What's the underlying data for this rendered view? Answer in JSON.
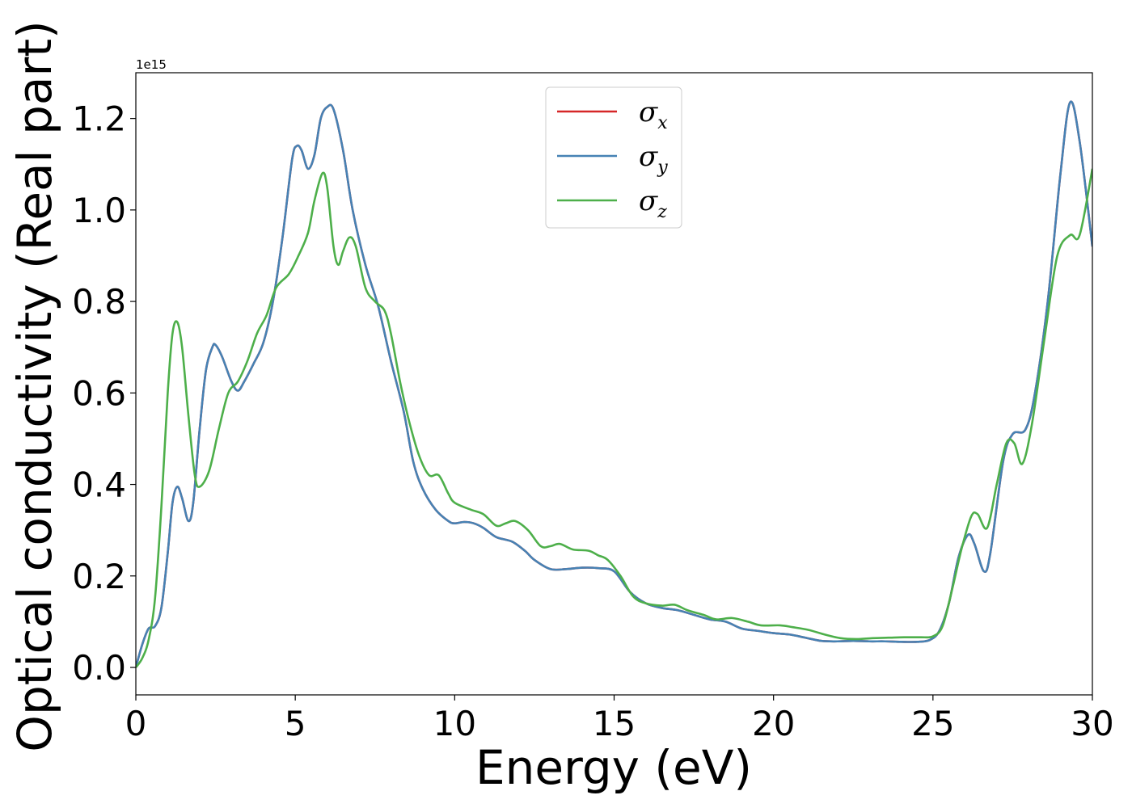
{
  "chart_data": {
    "type": "line",
    "xlabel": "Energy (eV)",
    "ylabel": "Optical conductivity (Real part)",
    "offset_text": "1e15",
    "xlim": [
      0,
      30
    ],
    "ylim": [
      -0.06,
      1.3
    ],
    "x_ticks": [
      0,
      5,
      10,
      15,
      20,
      25,
      30
    ],
    "x_tick_labels": [
      "0",
      "5",
      "10",
      "15",
      "20",
      "25",
      "30"
    ],
    "y_ticks": [
      0.0,
      0.2,
      0.4,
      0.6,
      0.8,
      1.0,
      1.2
    ],
    "y_tick_labels": [
      "0.0",
      "0.2",
      "0.4",
      "0.6",
      "0.8",
      "1.0",
      "1.2"
    ],
    "grid": false,
    "legend_position": "top-center",
    "series": [
      {
        "name": "σ",
        "subscript": "x",
        "color": "#d62728",
        "points": [
          [
            0,
            0
          ],
          [
            0.2,
            0.05
          ],
          [
            0.4,
            0.085
          ],
          [
            0.6,
            0.09
          ],
          [
            0.8,
            0.13
          ],
          [
            1.0,
            0.25
          ],
          [
            1.15,
            0.36
          ],
          [
            1.3,
            0.395
          ],
          [
            1.45,
            0.37
          ],
          [
            1.65,
            0.32
          ],
          [
            1.8,
            0.36
          ],
          [
            2.0,
            0.52
          ],
          [
            2.2,
            0.65
          ],
          [
            2.4,
            0.7
          ],
          [
            2.5,
            0.705
          ],
          [
            2.7,
            0.68
          ],
          [
            3.0,
            0.625
          ],
          [
            3.2,
            0.605
          ],
          [
            3.4,
            0.625
          ],
          [
            3.7,
            0.665
          ],
          [
            4.0,
            0.71
          ],
          [
            4.3,
            0.8
          ],
          [
            4.6,
            0.94
          ],
          [
            4.9,
            1.11
          ],
          [
            5.05,
            1.14
          ],
          [
            5.2,
            1.13
          ],
          [
            5.4,
            1.09
          ],
          [
            5.6,
            1.12
          ],
          [
            5.8,
            1.2
          ],
          [
            6.0,
            1.225
          ],
          [
            6.2,
            1.22
          ],
          [
            6.5,
            1.13
          ],
          [
            6.8,
            1.0
          ],
          [
            7.2,
            0.88
          ],
          [
            7.6,
            0.79
          ],
          [
            8.0,
            0.67
          ],
          [
            8.4,
            0.56
          ],
          [
            8.7,
            0.45
          ],
          [
            9.0,
            0.39
          ],
          [
            9.4,
            0.345
          ],
          [
            9.8,
            0.32
          ],
          [
            10.0,
            0.315
          ],
          [
            10.3,
            0.318
          ],
          [
            10.6,
            0.315
          ],
          [
            10.9,
            0.305
          ],
          [
            11.3,
            0.285
          ],
          [
            11.8,
            0.275
          ],
          [
            12.2,
            0.255
          ],
          [
            12.5,
            0.235
          ],
          [
            13.0,
            0.215
          ],
          [
            13.5,
            0.215
          ],
          [
            14.0,
            0.218
          ],
          [
            14.5,
            0.217
          ],
          [
            15.0,
            0.21
          ],
          [
            15.5,
            0.165
          ],
          [
            16.0,
            0.14
          ],
          [
            16.5,
            0.13
          ],
          [
            17.0,
            0.125
          ],
          [
            17.5,
            0.115
          ],
          [
            18.0,
            0.105
          ],
          [
            18.5,
            0.1
          ],
          [
            19.0,
            0.085
          ],
          [
            19.5,
            0.08
          ],
          [
            20.0,
            0.075
          ],
          [
            20.5,
            0.072
          ],
          [
            21.0,
            0.065
          ],
          [
            21.5,
            0.058
          ],
          [
            22.0,
            0.057
          ],
          [
            22.5,
            0.058
          ],
          [
            23.0,
            0.057
          ],
          [
            23.5,
            0.057
          ],
          [
            24.0,
            0.056
          ],
          [
            24.5,
            0.056
          ],
          [
            24.9,
            0.06
          ],
          [
            25.2,
            0.08
          ],
          [
            25.5,
            0.14
          ],
          [
            25.8,
            0.24
          ],
          [
            26.1,
            0.29
          ],
          [
            26.3,
            0.27
          ],
          [
            26.6,
            0.21
          ],
          [
            26.8,
            0.25
          ],
          [
            27.2,
            0.45
          ],
          [
            27.5,
            0.51
          ],
          [
            27.9,
            0.52
          ],
          [
            28.2,
            0.6
          ],
          [
            28.6,
            0.8
          ],
          [
            29.0,
            1.08
          ],
          [
            29.3,
            1.235
          ],
          [
            29.6,
            1.15
          ],
          [
            30.0,
            0.92
          ]
        ]
      },
      {
        "name": "σ",
        "subscript": "y",
        "color": "#4682b4",
        "points": [
          [
            0,
            0
          ],
          [
            0.2,
            0.05
          ],
          [
            0.4,
            0.085
          ],
          [
            0.6,
            0.09
          ],
          [
            0.8,
            0.13
          ],
          [
            1.0,
            0.25
          ],
          [
            1.15,
            0.36
          ],
          [
            1.3,
            0.395
          ],
          [
            1.45,
            0.37
          ],
          [
            1.65,
            0.32
          ],
          [
            1.8,
            0.36
          ],
          [
            2.0,
            0.52
          ],
          [
            2.2,
            0.65
          ],
          [
            2.4,
            0.7
          ],
          [
            2.5,
            0.705
          ],
          [
            2.7,
            0.68
          ],
          [
            3.0,
            0.625
          ],
          [
            3.2,
            0.605
          ],
          [
            3.4,
            0.625
          ],
          [
            3.7,
            0.665
          ],
          [
            4.0,
            0.71
          ],
          [
            4.3,
            0.8
          ],
          [
            4.6,
            0.94
          ],
          [
            4.9,
            1.11
          ],
          [
            5.05,
            1.14
          ],
          [
            5.2,
            1.13
          ],
          [
            5.4,
            1.09
          ],
          [
            5.6,
            1.12
          ],
          [
            5.8,
            1.2
          ],
          [
            6.0,
            1.225
          ],
          [
            6.2,
            1.22
          ],
          [
            6.5,
            1.13
          ],
          [
            6.8,
            1.0
          ],
          [
            7.2,
            0.88
          ],
          [
            7.6,
            0.79
          ],
          [
            8.0,
            0.67
          ],
          [
            8.4,
            0.56
          ],
          [
            8.7,
            0.45
          ],
          [
            9.0,
            0.39
          ],
          [
            9.4,
            0.345
          ],
          [
            9.8,
            0.32
          ],
          [
            10.0,
            0.315
          ],
          [
            10.3,
            0.318
          ],
          [
            10.6,
            0.315
          ],
          [
            10.9,
            0.305
          ],
          [
            11.3,
            0.285
          ],
          [
            11.8,
            0.275
          ],
          [
            12.2,
            0.255
          ],
          [
            12.5,
            0.235
          ],
          [
            13.0,
            0.215
          ],
          [
            13.5,
            0.215
          ],
          [
            14.0,
            0.218
          ],
          [
            14.5,
            0.217
          ],
          [
            15.0,
            0.21
          ],
          [
            15.5,
            0.165
          ],
          [
            16.0,
            0.14
          ],
          [
            16.5,
            0.13
          ],
          [
            17.0,
            0.125
          ],
          [
            17.5,
            0.115
          ],
          [
            18.0,
            0.105
          ],
          [
            18.5,
            0.1
          ],
          [
            19.0,
            0.085
          ],
          [
            19.5,
            0.08
          ],
          [
            20.0,
            0.075
          ],
          [
            20.5,
            0.072
          ],
          [
            21.0,
            0.065
          ],
          [
            21.5,
            0.058
          ],
          [
            22.0,
            0.057
          ],
          [
            22.5,
            0.058
          ],
          [
            23.0,
            0.057
          ],
          [
            23.5,
            0.057
          ],
          [
            24.0,
            0.056
          ],
          [
            24.5,
            0.056
          ],
          [
            24.9,
            0.06
          ],
          [
            25.2,
            0.08
          ],
          [
            25.5,
            0.14
          ],
          [
            25.8,
            0.24
          ],
          [
            26.1,
            0.29
          ],
          [
            26.3,
            0.27
          ],
          [
            26.6,
            0.21
          ],
          [
            26.8,
            0.25
          ],
          [
            27.2,
            0.45
          ],
          [
            27.5,
            0.51
          ],
          [
            27.9,
            0.52
          ],
          [
            28.2,
            0.6
          ],
          [
            28.6,
            0.8
          ],
          [
            29.0,
            1.08
          ],
          [
            29.3,
            1.235
          ],
          [
            29.6,
            1.15
          ],
          [
            30.0,
            0.92
          ]
        ]
      },
      {
        "name": "σ",
        "subscript": "z",
        "color": "#4daf4a",
        "points": [
          [
            0,
            0
          ],
          [
            0.2,
            0.02
          ],
          [
            0.4,
            0.06
          ],
          [
            0.6,
            0.15
          ],
          [
            0.8,
            0.35
          ],
          [
            1.0,
            0.6
          ],
          [
            1.15,
            0.73
          ],
          [
            1.3,
            0.755
          ],
          [
            1.45,
            0.7
          ],
          [
            1.65,
            0.55
          ],
          [
            1.85,
            0.42
          ],
          [
            2.0,
            0.395
          ],
          [
            2.3,
            0.43
          ],
          [
            2.6,
            0.52
          ],
          [
            2.9,
            0.6
          ],
          [
            3.2,
            0.625
          ],
          [
            3.5,
            0.67
          ],
          [
            3.8,
            0.73
          ],
          [
            4.1,
            0.77
          ],
          [
            4.4,
            0.83
          ],
          [
            4.8,
            0.86
          ],
          [
            5.1,
            0.9
          ],
          [
            5.4,
            0.95
          ],
          [
            5.6,
            1.02
          ],
          [
            5.85,
            1.08
          ],
          [
            6.0,
            1.05
          ],
          [
            6.2,
            0.92
          ],
          [
            6.35,
            0.88
          ],
          [
            6.5,
            0.91
          ],
          [
            6.7,
            0.94
          ],
          [
            6.9,
            0.92
          ],
          [
            7.2,
            0.83
          ],
          [
            7.5,
            0.8
          ],
          [
            7.8,
            0.78
          ],
          [
            8.0,
            0.73
          ],
          [
            8.3,
            0.62
          ],
          [
            8.6,
            0.53
          ],
          [
            8.9,
            0.46
          ],
          [
            9.2,
            0.42
          ],
          [
            9.5,
            0.42
          ],
          [
            9.8,
            0.38
          ],
          [
            10.0,
            0.36
          ],
          [
            10.5,
            0.345
          ],
          [
            10.9,
            0.335
          ],
          [
            11.3,
            0.31
          ],
          [
            11.6,
            0.315
          ],
          [
            11.9,
            0.32
          ],
          [
            12.3,
            0.3
          ],
          [
            12.7,
            0.265
          ],
          [
            13.0,
            0.265
          ],
          [
            13.3,
            0.27
          ],
          [
            13.7,
            0.258
          ],
          [
            14.2,
            0.255
          ],
          [
            14.5,
            0.245
          ],
          [
            14.8,
            0.235
          ],
          [
            15.2,
            0.2
          ],
          [
            15.6,
            0.155
          ],
          [
            16.0,
            0.14
          ],
          [
            16.5,
            0.135
          ],
          [
            16.9,
            0.137
          ],
          [
            17.3,
            0.125
          ],
          [
            17.8,
            0.115
          ],
          [
            18.2,
            0.105
          ],
          [
            18.7,
            0.108
          ],
          [
            19.2,
            0.1
          ],
          [
            19.6,
            0.092
          ],
          [
            20.2,
            0.092
          ],
          [
            20.6,
            0.088
          ],
          [
            21.1,
            0.082
          ],
          [
            21.6,
            0.072
          ],
          [
            22.1,
            0.064
          ],
          [
            22.6,
            0.062
          ],
          [
            23.1,
            0.064
          ],
          [
            23.6,
            0.065
          ],
          [
            24.1,
            0.066
          ],
          [
            24.6,
            0.066
          ],
          [
            25.0,
            0.068
          ],
          [
            25.3,
            0.09
          ],
          [
            25.6,
            0.17
          ],
          [
            25.9,
            0.26
          ],
          [
            26.2,
            0.33
          ],
          [
            26.4,
            0.335
          ],
          [
            26.7,
            0.305
          ],
          [
            27.0,
            0.4
          ],
          [
            27.3,
            0.49
          ],
          [
            27.55,
            0.49
          ],
          [
            27.8,
            0.445
          ],
          [
            28.1,
            0.53
          ],
          [
            28.5,
            0.72
          ],
          [
            28.9,
            0.9
          ],
          [
            29.3,
            0.945
          ],
          [
            29.6,
            0.945
          ],
          [
            30.0,
            1.09
          ]
        ]
      }
    ]
  }
}
